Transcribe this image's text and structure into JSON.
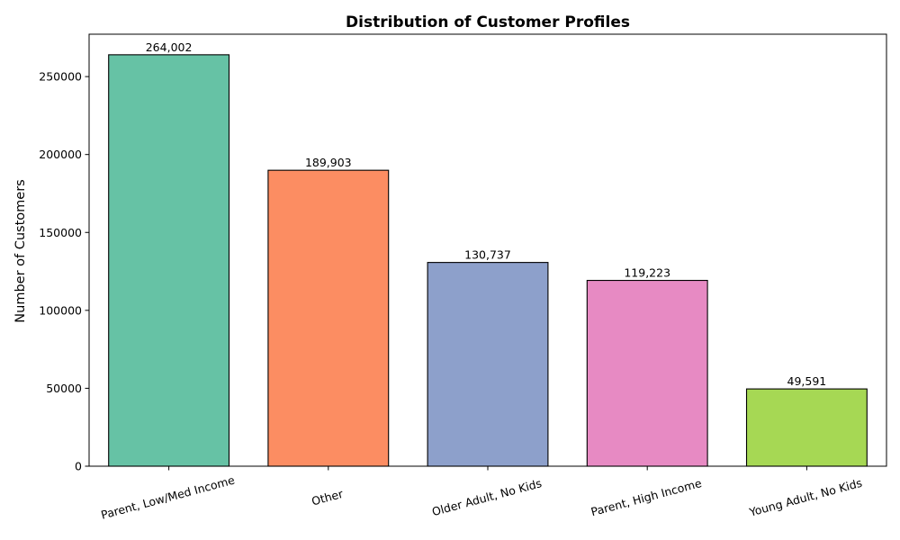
{
  "chart_data": {
    "type": "bar",
    "title": "Distribution of Customer Profiles",
    "xlabel": "",
    "ylabel": "Number of Customers",
    "categories": [
      "Parent, Low/Med Income",
      "Other",
      "Older Adult, No Kids",
      "Parent, High Income",
      "Young Adult, No Kids"
    ],
    "values": [
      264002,
      189903,
      130737,
      119223,
      49591
    ],
    "data_labels": [
      "264,002",
      "189,903",
      "130,737",
      "119,223",
      "49,591"
    ],
    "colors": [
      "#66c2a5",
      "#fc8d62",
      "#8da0cb",
      "#e78ac3",
      "#a6d854"
    ],
    "ylim": [
      0,
      277202
    ],
    "yticks": [
      0,
      50000,
      100000,
      150000,
      200000,
      250000
    ],
    "ytick_labels": [
      "0",
      "50000",
      "100000",
      "150000",
      "200000",
      "250000"
    ],
    "grid": false,
    "legend": "none",
    "x_tick_rotation_deg": 15
  }
}
